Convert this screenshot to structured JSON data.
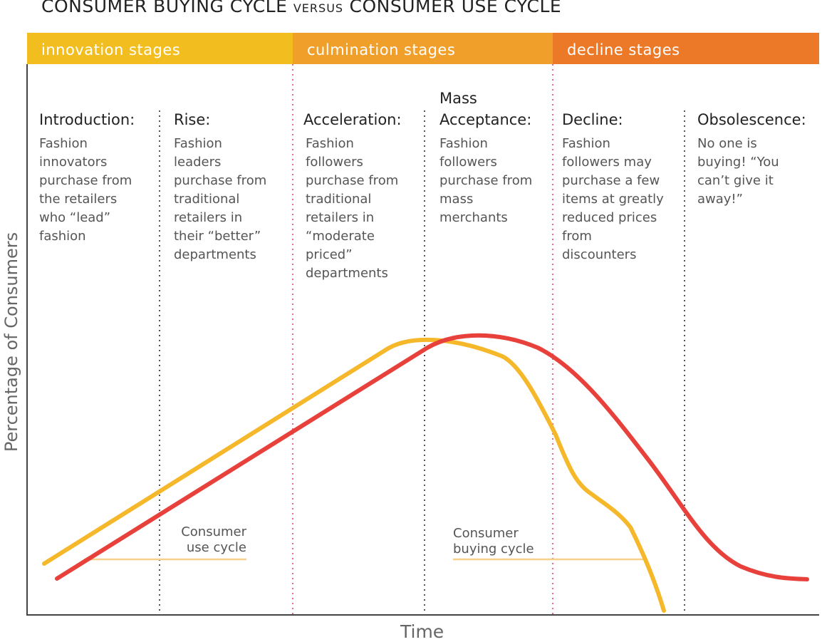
{
  "title": {
    "main1": "CONSUMER BUYING CYCLE",
    "versus": "VERSUS",
    "main2": "CONSUMER USE CYCLE"
  },
  "bands": [
    {
      "label": "innovation stages",
      "color": "#F2BE1F"
    },
    {
      "label": "culmination stages",
      "color": "#F0A02A"
    },
    {
      "label": "decline stages",
      "color": "#EC7928"
    }
  ],
  "stages": [
    {
      "head": "Introduction:",
      "desc": "Fashion\ninnovators\npurchase from\nthe retailers\nwho “lead”\nfashion"
    },
    {
      "head": "Rise:",
      "desc": "Fashion\nleaders\npurchase from\ntraditional\nretailers in\ntheir “better”\ndepartments"
    },
    {
      "head": "Acceleration:",
      "desc": "Fashion\nfollowers\npurchase from\ntraditional\nretailers in\n“moderate\npriced”\ndepartments"
    },
    {
      "head_line1": "Mass",
      "head": "Acceptance:",
      "desc": "Fashion\nfollowers\npurchase from\nmass\nmerchants"
    },
    {
      "head": "Decline:",
      "desc": "Fashion\nfollowers may\npurchase a few\nitems at greatly\nreduced prices\nfrom\ndiscounters"
    },
    {
      "head": "Obsolescence:",
      "desc": "No one is\nbuying! “You\ncan’t give it\naway!”"
    }
  ],
  "curves": {
    "use_cycle": {
      "label": "Consumer\nuse cycle",
      "color": "#F5B82A"
    },
    "buying_cycle": {
      "label": "Consumer\nbuying cycle",
      "color": "#E8403A"
    }
  },
  "axes": {
    "ylabel": "Percentage of Consumers",
    "xlabel": "Time"
  },
  "divider_colors": {
    "major": "#E66A86",
    "minor": "#555555"
  }
}
